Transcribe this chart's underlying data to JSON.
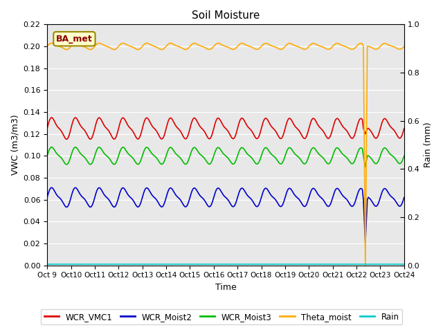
{
  "title": "Soil Moisture",
  "ylabel_left": "VWC (m3/m3)",
  "ylabel_right": "Rain (mm)",
  "xlabel": "Time",
  "ylim_left": [
    0.0,
    0.22
  ],
  "ylim_right": [
    0.0,
    1.0
  ],
  "yticks_left": [
    0.0,
    0.02,
    0.04,
    0.06,
    0.08,
    0.1,
    0.12,
    0.14,
    0.16,
    0.18,
    0.2,
    0.22
  ],
  "yticks_right": [
    0.0,
    0.2,
    0.4,
    0.6,
    0.8,
    1.0
  ],
  "n_days": 15,
  "colors": {
    "WCR_VMC1": "#dd0000",
    "WCR_Moist2": "#0000cc",
    "WCR_Moist3": "#00bb00",
    "Theta_moist": "#ffaa00",
    "Rain": "#00cccc"
  },
  "annotation_text": "BA_met",
  "annotation_bg": "#ffffcc",
  "annotation_border": "#998800",
  "annotation_textcolor": "#880000",
  "bg_color": "#e8e8e8",
  "line_width": 1.2,
  "tick_labels": [
    "Oct 9",
    "Oct 10",
    "Oct 11",
    "Oct 12",
    "Oct 13",
    "Oct 14",
    "Oct 15",
    "Oct 16",
    "Oct 17",
    "Oct 18",
    "Oct 19",
    "Oct 20",
    "Oct 21",
    "Oct 22",
    "Oct 23",
    "Oct 24"
  ],
  "spike_day": 13.35
}
